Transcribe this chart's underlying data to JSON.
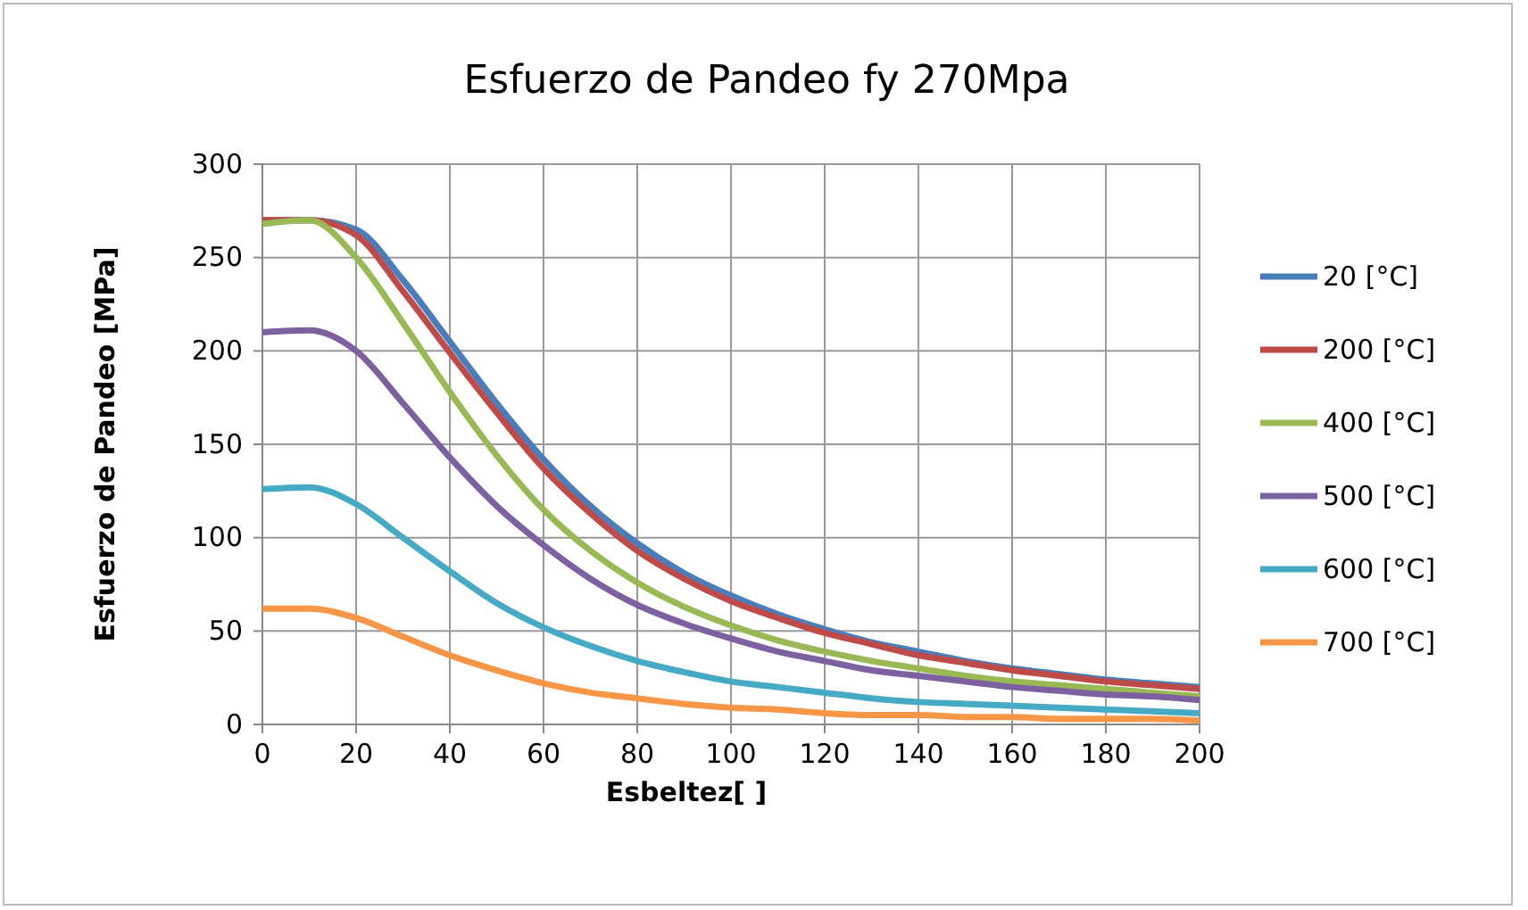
{
  "chart_data": {
    "type": "line",
    "title": "Esfuerzo de Pandeo fy 270Mpa",
    "xlabel": "Esbeltez[ ]",
    "ylabel": "Esfuerzo de Pandeo [MPa]",
    "x": [
      0,
      10,
      20,
      30,
      40,
      50,
      60,
      70,
      80,
      90,
      100,
      110,
      120,
      130,
      140,
      150,
      160,
      170,
      180,
      190,
      200
    ],
    "series": [
      {
        "name": "20 [°C]",
        "color": "#4a7ebb",
        "values": [
          270,
          270,
          265,
          238,
          205,
          172,
          142,
          117,
          97,
          81,
          69,
          59,
          51,
          44,
          39,
          34,
          30,
          27,
          24,
          22,
          20
        ]
      },
      {
        "name": "200 [°C]",
        "color": "#be4b48",
        "values": [
          270,
          270,
          262,
          232,
          199,
          167,
          137,
          113,
          93,
          78,
          66,
          57,
          49,
          43,
          37,
          33,
          29,
          26,
          23,
          21,
          19
        ]
      },
      {
        "name": "400 [°C]",
        "color": "#98b954",
        "values": [
          268,
          270,
          250,
          215,
          178,
          144,
          115,
          93,
          76,
          63,
          53,
          45,
          39,
          34,
          30,
          26,
          23,
          21,
          19,
          17,
          15
        ]
      },
      {
        "name": "500 [°C]",
        "color": "#7d60a0",
        "values": [
          210,
          211,
          200,
          172,
          143,
          117,
          96,
          78,
          64,
          54,
          46,
          39,
          34,
          29,
          26,
          23,
          20,
          18,
          16,
          15,
          13
        ]
      },
      {
        "name": "600 [°C]",
        "color": "#46aac5",
        "values": [
          126,
          127,
          118,
          100,
          82,
          65,
          52,
          42,
          34,
          28,
          23,
          20,
          17,
          14,
          12,
          11,
          10,
          9,
          8,
          7,
          6
        ]
      },
      {
        "name": "700 [°C]",
        "color": "#f79646",
        "values": [
          62,
          62,
          57,
          47,
          37,
          29,
          22,
          17,
          14,
          11,
          9,
          8,
          6,
          5,
          5,
          4,
          4,
          3,
          3,
          3,
          2
        ]
      }
    ],
    "xlim": [
      0,
      200
    ],
    "xticks": [
      0,
      20,
      40,
      60,
      80,
      100,
      120,
      140,
      160,
      180,
      200
    ],
    "ylim": [
      0,
      300
    ],
    "yticks": [
      0,
      50,
      100,
      150,
      200,
      250,
      300
    ],
    "grid": true,
    "legend": "right",
    "marker": "none",
    "line_style": "solid"
  }
}
